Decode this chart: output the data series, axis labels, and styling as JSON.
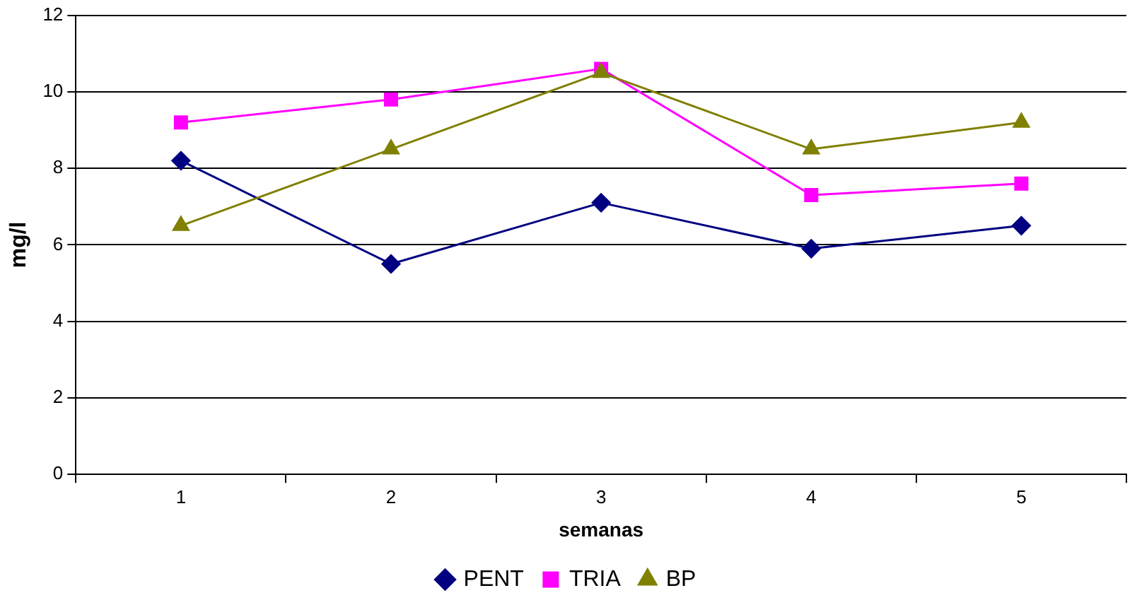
{
  "chart_data": {
    "type": "line",
    "xlabel": "semanas",
    "ylabel": "mg/l",
    "categories": [
      "1",
      "2",
      "3",
      "4",
      "5"
    ],
    "series": [
      {
        "name": "PENT",
        "color": "#000080",
        "marker": "diamond",
        "values": [
          8.2,
          5.5,
          7.1,
          5.9,
          6.5
        ]
      },
      {
        "name": "TRIA",
        "color": "#ff00ff",
        "marker": "square",
        "values": [
          9.2,
          9.8,
          10.6,
          7.3,
          7.6
        ]
      },
      {
        "name": "BP",
        "color": "#808000",
        "marker": "triangle",
        "values": [
          6.5,
          8.5,
          10.5,
          8.5,
          9.2
        ]
      }
    ],
    "ylim": [
      0,
      12
    ],
    "yticks": [
      0,
      2,
      4,
      6,
      8,
      10,
      12
    ],
    "grid": "y",
    "legend": "bottom"
  }
}
